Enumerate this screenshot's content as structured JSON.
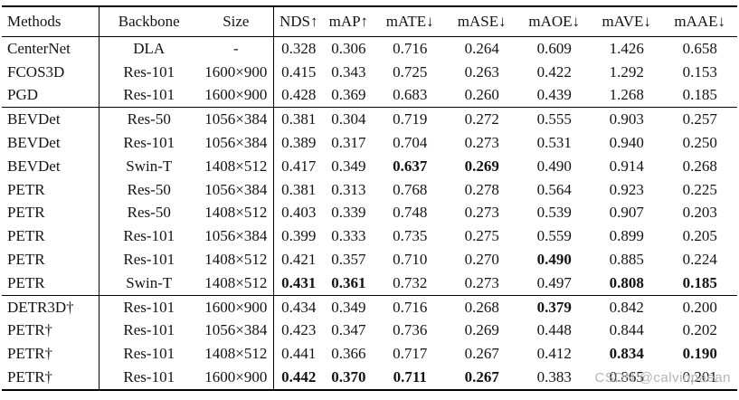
{
  "table": {
    "columns": [
      {
        "label": "Methods"
      },
      {
        "label": "Backbone"
      },
      {
        "label": "Size"
      },
      {
        "label": "NDS↑"
      },
      {
        "label": "mAP↑"
      },
      {
        "label": "mATE↓"
      },
      {
        "label": "mASE↓"
      },
      {
        "label": "mAOE↓"
      },
      {
        "label": "mAVE↓"
      },
      {
        "label": "mAAE↓"
      }
    ],
    "rule_after": [
      2,
      10
    ],
    "rows": [
      {
        "cells": [
          "CenterNet",
          "DLA",
          "-",
          "0.328",
          "0.306",
          "0.716",
          "0.264",
          "0.609",
          "1.426",
          "0.658"
        ],
        "bold": []
      },
      {
        "cells": [
          "FCOS3D",
          "Res-101",
          "1600×900",
          "0.415",
          "0.343",
          "0.725",
          "0.263",
          "0.422",
          "1.292",
          "0.153"
        ],
        "bold": []
      },
      {
        "cells": [
          "PGD",
          "Res-101",
          "1600×900",
          "0.428",
          "0.369",
          "0.683",
          "0.260",
          "0.439",
          "1.268",
          "0.185"
        ],
        "bold": []
      },
      {
        "cells": [
          "BEVDet",
          "Res-50",
          "1056×384",
          "0.381",
          "0.304",
          "0.719",
          "0.272",
          "0.555",
          "0.903",
          "0.257"
        ],
        "bold": []
      },
      {
        "cells": [
          "BEVDet",
          "Res-101",
          "1056×384",
          "0.389",
          "0.317",
          "0.704",
          "0.273",
          "0.531",
          "0.940",
          "0.250"
        ],
        "bold": []
      },
      {
        "cells": [
          "BEVDet",
          "Swin-T",
          "1408×512",
          "0.417",
          "0.349",
          "0.637",
          "0.269",
          "0.490",
          "0.914",
          "0.268"
        ],
        "bold": [
          5,
          6
        ]
      },
      {
        "cells": [
          "PETR",
          "Res-50",
          "1056×384",
          "0.381",
          "0.313",
          "0.768",
          "0.278",
          "0.564",
          "0.923",
          "0.225"
        ],
        "bold": []
      },
      {
        "cells": [
          "PETR",
          "Res-50",
          "1408×512",
          "0.403",
          "0.339",
          "0.748",
          "0.273",
          "0.539",
          "0.907",
          "0.203"
        ],
        "bold": []
      },
      {
        "cells": [
          "PETR",
          "Res-101",
          "1056×384",
          "0.399",
          "0.333",
          "0.735",
          "0.275",
          "0.559",
          "0.899",
          "0.205"
        ],
        "bold": []
      },
      {
        "cells": [
          "PETR",
          "Res-101",
          "1408×512",
          "0.421",
          "0.357",
          "0.710",
          "0.270",
          "0.490",
          "0.885",
          "0.224"
        ],
        "bold": [
          7
        ]
      },
      {
        "cells": [
          "PETR",
          "Swin-T",
          "1408×512",
          "0.431",
          "0.361",
          "0.732",
          "0.273",
          "0.497",
          "0.808",
          "0.185"
        ],
        "bold": [
          3,
          4,
          8,
          9
        ]
      },
      {
        "cells": [
          "DETR3D†",
          "Res-101",
          "1600×900",
          "0.434",
          "0.349",
          "0.716",
          "0.268",
          "0.379",
          "0.842",
          "0.200"
        ],
        "bold": [
          7
        ]
      },
      {
        "cells": [
          "PETR†",
          "Res-101",
          "1056×384",
          "0.423",
          "0.347",
          "0.736",
          "0.269",
          "0.448",
          "0.844",
          "0.202"
        ],
        "bold": []
      },
      {
        "cells": [
          "PETR†",
          "Res-101",
          "1408×512",
          "0.441",
          "0.366",
          "0.717",
          "0.267",
          "0.412",
          "0.834",
          "0.190"
        ],
        "bold": [
          8,
          9
        ]
      },
      {
        "cells": [
          "PETR†",
          "Res-101",
          "1600×900",
          "0.442",
          "0.370",
          "0.711",
          "0.267",
          "0.383",
          "0.865",
          "0.201"
        ],
        "bold": [
          3,
          4,
          5,
          6
        ]
      }
    ]
  },
  "watermark": {
    "text": "CSDN @calvinpaean"
  }
}
